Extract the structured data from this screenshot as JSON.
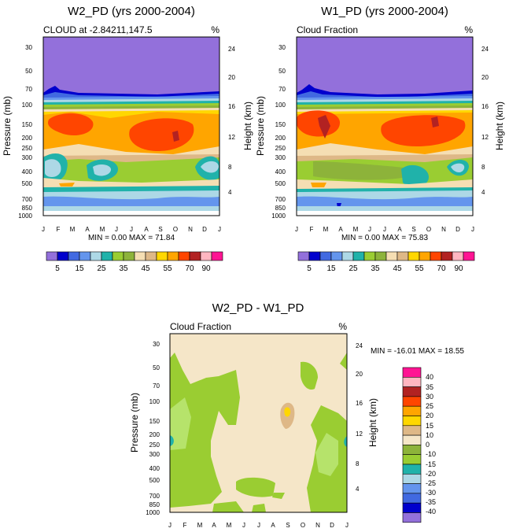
{
  "figure": {
    "unit_symbol": "%",
    "months": [
      "J",
      "F",
      "M",
      "A",
      "M",
      "J",
      "J",
      "A",
      "S",
      "O",
      "N",
      "D",
      "J"
    ],
    "pressure_label": "Pressure (mb)",
    "height_label": "Height (km)",
    "pressure_ticks": [
      "30",
      "50",
      "70",
      "100",
      "150",
      "200",
      "250",
      "300",
      "400",
      "500",
      "700",
      "850",
      "1000"
    ],
    "height_ticks": [
      "24",
      "20",
      "16",
      "12",
      "8",
      "4"
    ],
    "colors": {
      "level_colors_top": [
        "#9370db",
        "#0000cd",
        "#4169e1",
        "#6495ed",
        "#add8e6",
        "#20b2aa",
        "#9acd32",
        "#8db33a",
        "#f5deb3",
        "#deb887",
        "#ffd700",
        "#ffa500",
        "#ff4500",
        "#b22222",
        "#ffb6c1",
        "#ff1493"
      ],
      "level_colors_diff": [
        "#9370db",
        "#0000cd",
        "#4169e1",
        "#6495ed",
        "#add8e6",
        "#20b2aa",
        "#9acd32",
        "#8db33a",
        "#f5e6c8",
        "#deb887",
        "#ffd700",
        "#ffa500",
        "#ff4500",
        "#b22222",
        "#ffb6c1",
        "#ff1493"
      ]
    }
  },
  "chart_data": [
    {
      "type": "heatmap",
      "title": "W2_PD (yrs 2000-2004)",
      "subtitle_left": "CLOUD at -2.84211,147.5",
      "x": [
        "J",
        "F",
        "M",
        "A",
        "M",
        "J",
        "J",
        "A",
        "S",
        "O",
        "N",
        "D",
        "J"
      ],
      "ylabel": "Pressure (mb)",
      "y2label": "Height (km)",
      "stats": "MIN =  0.00 MAX = 71.84",
      "colorbar_labels": [
        "5",
        "15",
        "25",
        "35",
        "45",
        "55",
        "70",
        "90"
      ],
      "min": 0.0,
      "max": 71.84
    },
    {
      "type": "heatmap",
      "title": "W1_PD (yrs 2000-2004)",
      "subtitle_left": "Cloud Fraction",
      "x": [
        "J",
        "F",
        "M",
        "A",
        "M",
        "J",
        "J",
        "A",
        "S",
        "O",
        "N",
        "D",
        "J"
      ],
      "ylabel": "Pressure (mb)",
      "y2label": "Height (km)",
      "stats": "MIN =  0.00 MAX = 75.83",
      "colorbar_labels": [
        "5",
        "15",
        "25",
        "35",
        "45",
        "55",
        "70",
        "90"
      ],
      "min": 0.0,
      "max": 75.83
    },
    {
      "type": "heatmap",
      "title": "W2_PD - W1_PD",
      "subtitle_left": "Cloud Fraction",
      "x": [
        "J",
        "F",
        "M",
        "A",
        "M",
        "J",
        "J",
        "A",
        "S",
        "O",
        "N",
        "D",
        "J"
      ],
      "ylabel": "Pressure (mb)",
      "y2label": "Height (km)",
      "stats": "MIN = -16.01 MAX =  18.55",
      "colorbar_labels": [
        "40",
        "35",
        "30",
        "25",
        "20",
        "15",
        "10",
        "0",
        "-10",
        "-15",
        "-20",
        "-25",
        "-30",
        "-35",
        "-40"
      ],
      "min": -16.01,
      "max": 18.55
    }
  ]
}
